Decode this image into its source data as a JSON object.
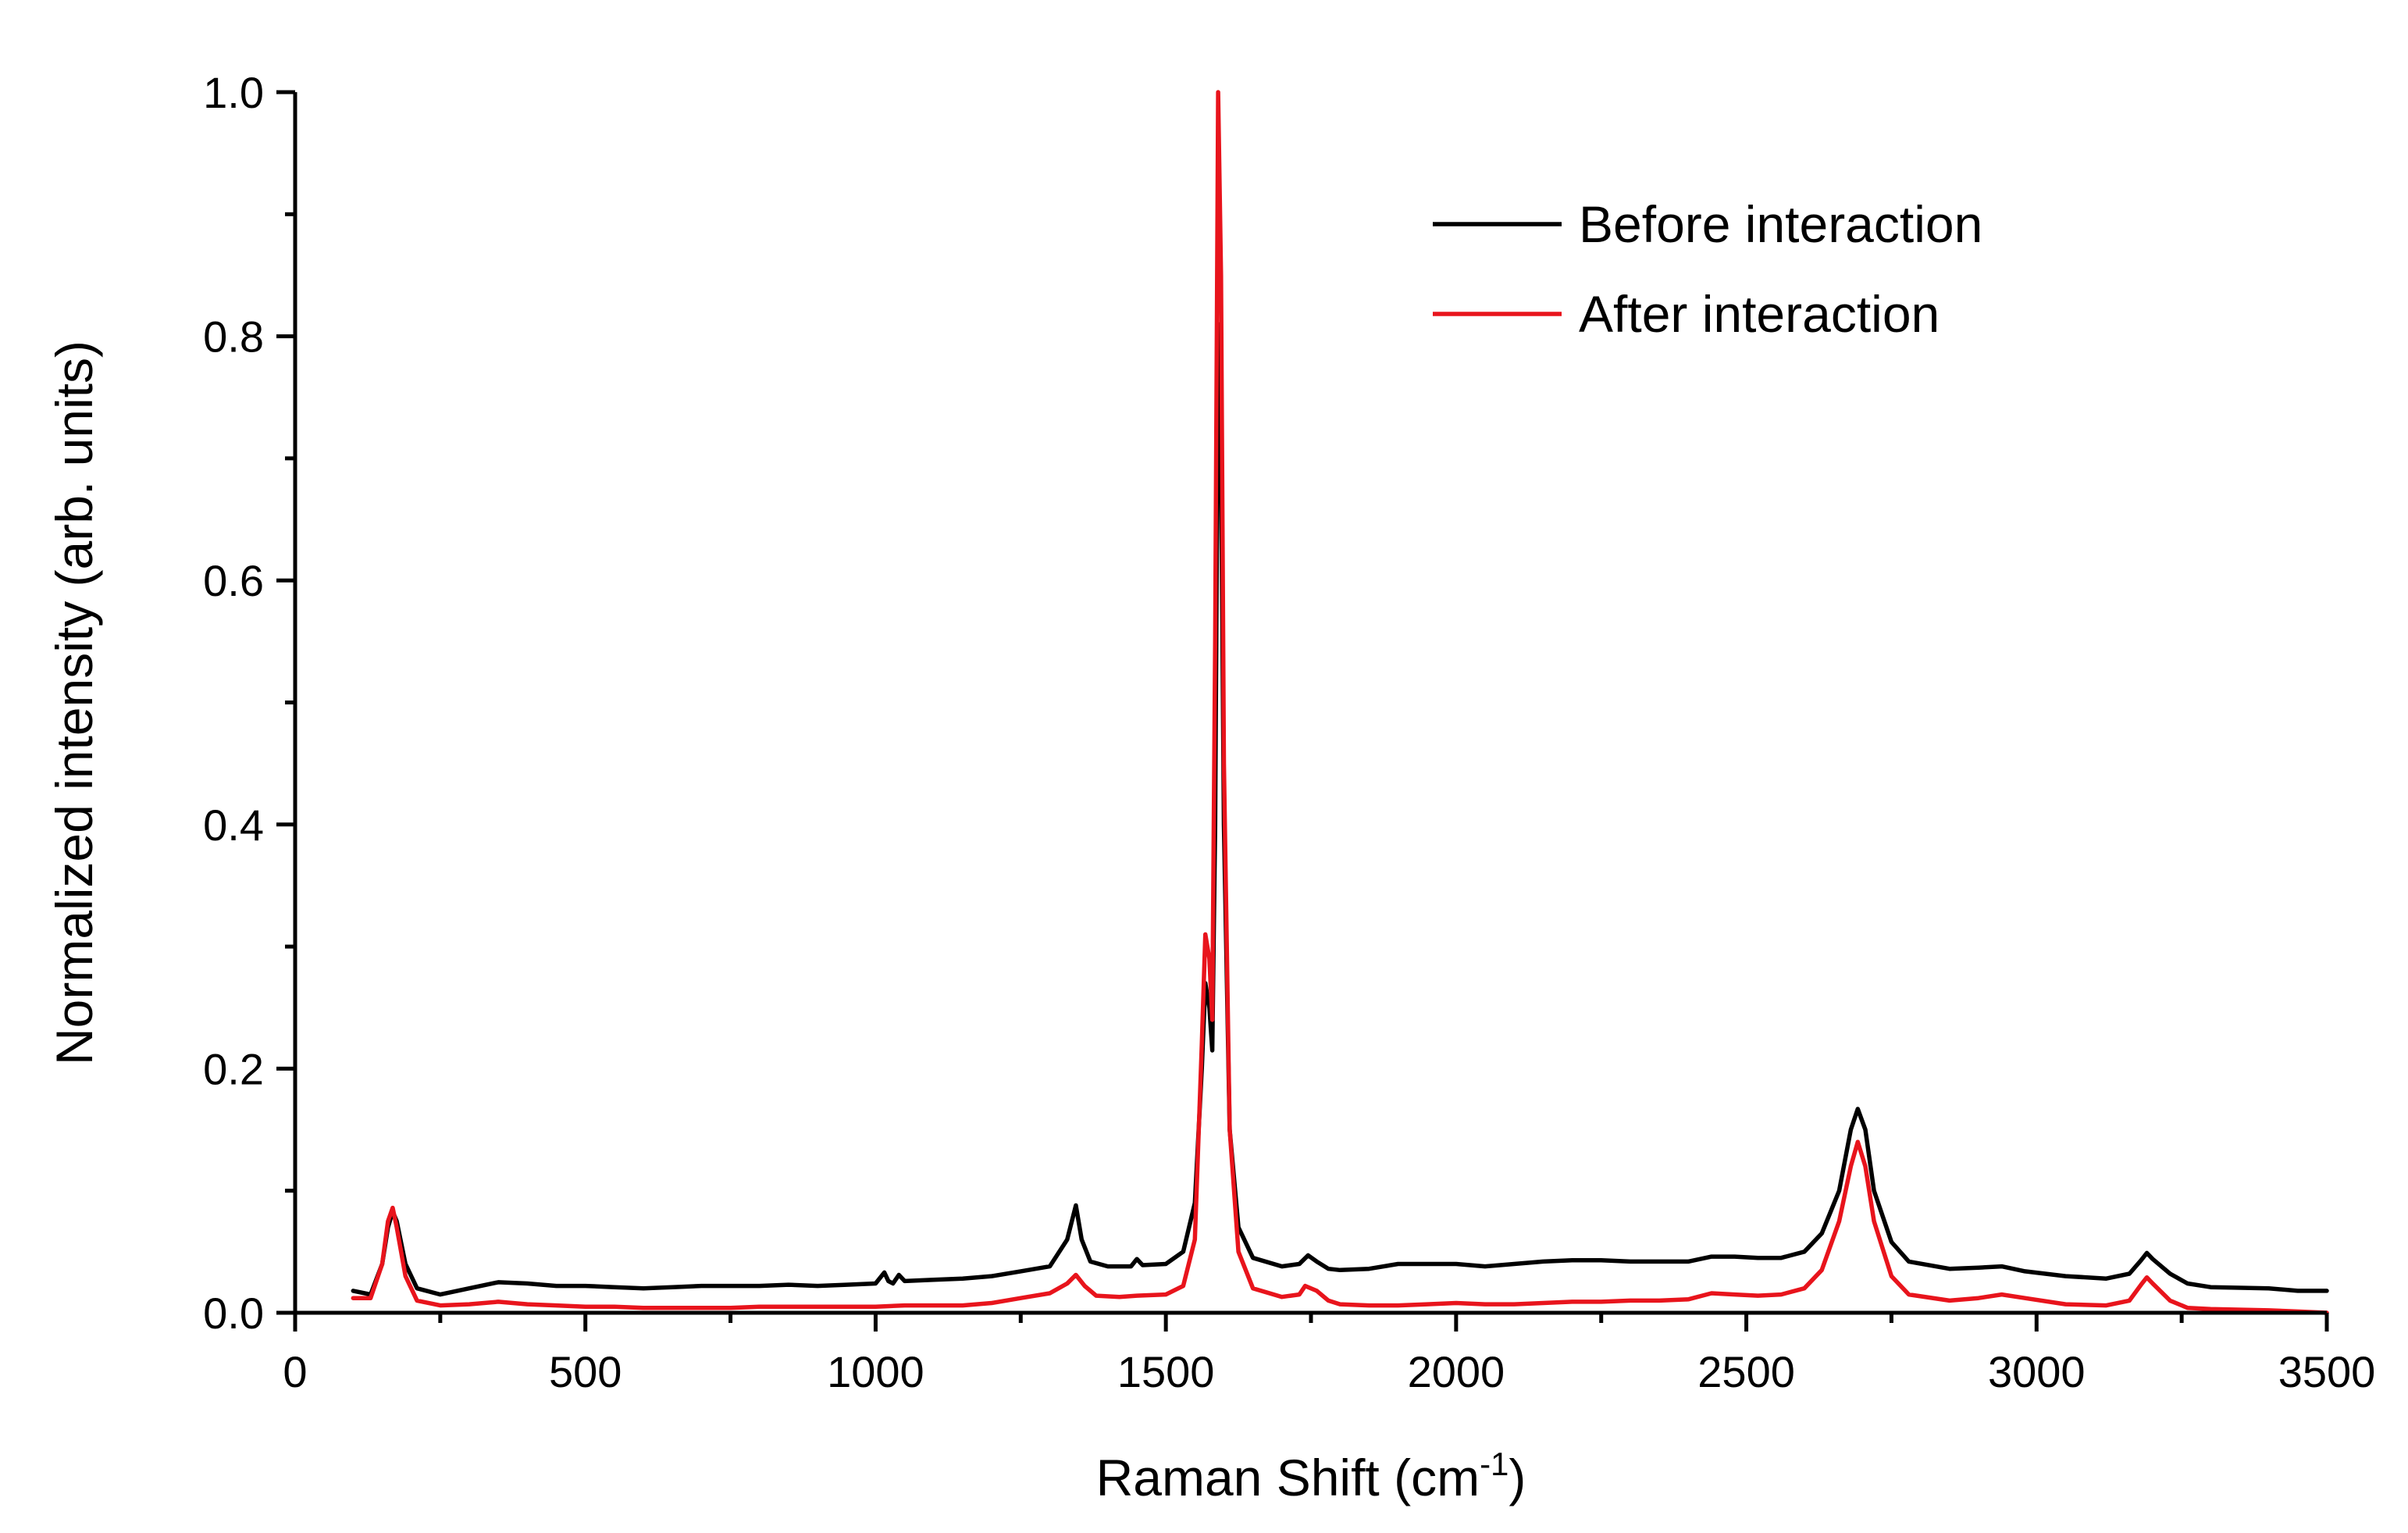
{
  "chart_data": {
    "type": "line",
    "title": "",
    "xlabel": "Raman Shift (cm",
    "xlabel_sup": "-1",
    "xlabel_close": ")",
    "ylabel": "Normalized intensity (arb. units)",
    "xlim": [
      0,
      3500
    ],
    "ylim": [
      0,
      1.0
    ],
    "x_ticks": [
      0,
      500,
      1000,
      1500,
      2000,
      2500,
      3000,
      3500
    ],
    "x_tick_labels": [
      "0",
      "500",
      "1000",
      "1500",
      "2000",
      "2500",
      "3000",
      "3500"
    ],
    "y_ticks": [
      0.0,
      0.2,
      0.4,
      0.6,
      0.8,
      1.0
    ],
    "y_tick_labels": [
      "0.0",
      "0.2",
      "0.4",
      "0.6",
      "0.8",
      "1.0"
    ],
    "grid": false,
    "legend_position": "top-right",
    "series": [
      {
        "name": "Before interaction",
        "color": "#000000",
        "points": [
          [
            100,
            0.018
          ],
          [
            130,
            0.015
          ],
          [
            150,
            0.04
          ],
          [
            160,
            0.07
          ],
          [
            168,
            0.083
          ],
          [
            175,
            0.075
          ],
          [
            190,
            0.04
          ],
          [
            210,
            0.02
          ],
          [
            250,
            0.015
          ],
          [
            300,
            0.02
          ],
          [
            350,
            0.025
          ],
          [
            400,
            0.024
          ],
          [
            450,
            0.022
          ],
          [
            500,
            0.022
          ],
          [
            550,
            0.021
          ],
          [
            600,
            0.02
          ],
          [
            650,
            0.021
          ],
          [
            700,
            0.022
          ],
          [
            750,
            0.022
          ],
          [
            800,
            0.022
          ],
          [
            850,
            0.023
          ],
          [
            900,
            0.022
          ],
          [
            950,
            0.023
          ],
          [
            1000,
            0.024
          ],
          [
            1015,
            0.033
          ],
          [
            1022,
            0.026
          ],
          [
            1030,
            0.024
          ],
          [
            1040,
            0.031
          ],
          [
            1050,
            0.026
          ],
          [
            1100,
            0.027
          ],
          [
            1150,
            0.028
          ],
          [
            1200,
            0.03
          ],
          [
            1250,
            0.034
          ],
          [
            1300,
            0.038
          ],
          [
            1330,
            0.06
          ],
          [
            1345,
            0.088
          ],
          [
            1355,
            0.06
          ],
          [
            1370,
            0.042
          ],
          [
            1400,
            0.038
          ],
          [
            1440,
            0.038
          ],
          [
            1450,
            0.044
          ],
          [
            1460,
            0.039
          ],
          [
            1500,
            0.04
          ],
          [
            1530,
            0.05
          ],
          [
            1550,
            0.09
          ],
          [
            1562,
            0.2
          ],
          [
            1568,
            0.27
          ],
          [
            1575,
            0.25
          ],
          [
            1580,
            0.215
          ],
          [
            1585,
            0.4
          ],
          [
            1590,
            0.81
          ],
          [
            1595,
            0.7
          ],
          [
            1600,
            0.4
          ],
          [
            1610,
            0.15
          ],
          [
            1625,
            0.07
          ],
          [
            1650,
            0.045
          ],
          [
            1700,
            0.038
          ],
          [
            1730,
            0.04
          ],
          [
            1745,
            0.047
          ],
          [
            1760,
            0.042
          ],
          [
            1780,
            0.036
          ],
          [
            1800,
            0.035
          ],
          [
            1850,
            0.036
          ],
          [
            1900,
            0.04
          ],
          [
            1950,
            0.04
          ],
          [
            2000,
            0.04
          ],
          [
            2050,
            0.038
          ],
          [
            2100,
            0.04
          ],
          [
            2150,
            0.042
          ],
          [
            2200,
            0.043
          ],
          [
            2250,
            0.043
          ],
          [
            2300,
            0.042
          ],
          [
            2350,
            0.042
          ],
          [
            2400,
            0.042
          ],
          [
            2440,
            0.046
          ],
          [
            2480,
            0.046
          ],
          [
            2520,
            0.045
          ],
          [
            2560,
            0.045
          ],
          [
            2600,
            0.05
          ],
          [
            2630,
            0.065
          ],
          [
            2660,
            0.1
          ],
          [
            2680,
            0.15
          ],
          [
            2692,
            0.167
          ],
          [
            2705,
            0.15
          ],
          [
            2720,
            0.1
          ],
          [
            2750,
            0.058
          ],
          [
            2780,
            0.042
          ],
          [
            2850,
            0.036
          ],
          [
            2900,
            0.037
          ],
          [
            2940,
            0.038
          ],
          [
            2980,
            0.034
          ],
          [
            3050,
            0.03
          ],
          [
            3120,
            0.028
          ],
          [
            3160,
            0.032
          ],
          [
            3180,
            0.043
          ],
          [
            3190,
            0.049
          ],
          [
            3200,
            0.044
          ],
          [
            3230,
            0.032
          ],
          [
            3260,
            0.024
          ],
          [
            3300,
            0.021
          ],
          [
            3400,
            0.02
          ],
          [
            3450,
            0.018
          ],
          [
            3500,
            0.018
          ]
        ]
      },
      {
        "name": "After interaction",
        "color": "#e8141c",
        "points": [
          [
            100,
            0.012
          ],
          [
            130,
            0.012
          ],
          [
            150,
            0.04
          ],
          [
            160,
            0.075
          ],
          [
            168,
            0.086
          ],
          [
            175,
            0.07
          ],
          [
            190,
            0.03
          ],
          [
            210,
            0.01
          ],
          [
            250,
            0.006
          ],
          [
            300,
            0.007
          ],
          [
            350,
            0.009
          ],
          [
            400,
            0.007
          ],
          [
            450,
            0.006
          ],
          [
            500,
            0.005
          ],
          [
            550,
            0.005
          ],
          [
            600,
            0.004
          ],
          [
            650,
            0.004
          ],
          [
            700,
            0.004
          ],
          [
            750,
            0.004
          ],
          [
            800,
            0.005
          ],
          [
            850,
            0.005
          ],
          [
            900,
            0.005
          ],
          [
            950,
            0.005
          ],
          [
            1000,
            0.005
          ],
          [
            1050,
            0.006
          ],
          [
            1100,
            0.006
          ],
          [
            1150,
            0.006
          ],
          [
            1200,
            0.008
          ],
          [
            1250,
            0.012
          ],
          [
            1300,
            0.016
          ],
          [
            1330,
            0.024
          ],
          [
            1345,
            0.031
          ],
          [
            1360,
            0.022
          ],
          [
            1380,
            0.014
          ],
          [
            1420,
            0.013
          ],
          [
            1450,
            0.014
          ],
          [
            1500,
            0.015
          ],
          [
            1530,
            0.022
          ],
          [
            1550,
            0.06
          ],
          [
            1562,
            0.22
          ],
          [
            1568,
            0.31
          ],
          [
            1575,
            0.29
          ],
          [
            1580,
            0.24
          ],
          [
            1585,
            0.55
          ],
          [
            1590,
            1.0
          ],
          [
            1595,
            0.85
          ],
          [
            1600,
            0.45
          ],
          [
            1610,
            0.15
          ],
          [
            1625,
            0.05
          ],
          [
            1650,
            0.02
          ],
          [
            1700,
            0.013
          ],
          [
            1730,
            0.015
          ],
          [
            1740,
            0.022
          ],
          [
            1760,
            0.018
          ],
          [
            1780,
            0.01
          ],
          [
            1800,
            0.007
          ],
          [
            1850,
            0.006
          ],
          [
            1900,
            0.006
          ],
          [
            1950,
            0.007
          ],
          [
            2000,
            0.008
          ],
          [
            2050,
            0.007
          ],
          [
            2100,
            0.007
          ],
          [
            2150,
            0.008
          ],
          [
            2200,
            0.009
          ],
          [
            2250,
            0.009
          ],
          [
            2300,
            0.01
          ],
          [
            2350,
            0.01
          ],
          [
            2400,
            0.011
          ],
          [
            2440,
            0.016
          ],
          [
            2480,
            0.015
          ],
          [
            2520,
            0.014
          ],
          [
            2560,
            0.015
          ],
          [
            2600,
            0.02
          ],
          [
            2630,
            0.035
          ],
          [
            2660,
            0.075
          ],
          [
            2680,
            0.12
          ],
          [
            2692,
            0.14
          ],
          [
            2705,
            0.12
          ],
          [
            2720,
            0.075
          ],
          [
            2750,
            0.03
          ],
          [
            2780,
            0.015
          ],
          [
            2850,
            0.01
          ],
          [
            2900,
            0.012
          ],
          [
            2940,
            0.015
          ],
          [
            2980,
            0.012
          ],
          [
            3050,
            0.007
          ],
          [
            3120,
            0.006
          ],
          [
            3160,
            0.01
          ],
          [
            3180,
            0.023
          ],
          [
            3190,
            0.029
          ],
          [
            3200,
            0.024
          ],
          [
            3230,
            0.01
          ],
          [
            3260,
            0.004
          ],
          [
            3300,
            0.003
          ],
          [
            3400,
            0.002
          ],
          [
            3450,
            0.001
          ],
          [
            3500,
            0.0
          ]
        ]
      }
    ]
  }
}
